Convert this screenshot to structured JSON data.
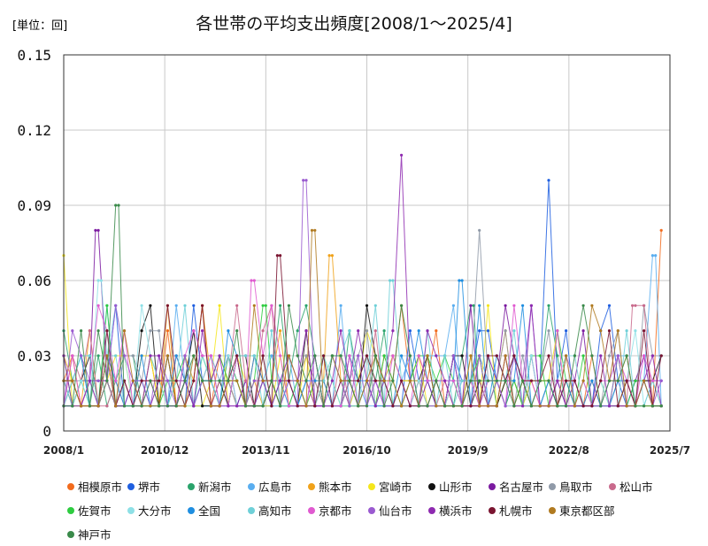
{
  "chart_data": {
    "type": "line",
    "title": "各世帯の平均支出頻度[2008/1～2025/4]",
    "unit_label": "[単位：回]",
    "xlabel": "",
    "ylabel": "",
    "ylim": [
      0,
      0.15
    ],
    "y_ticks": [
      "0",
      "0.03",
      "0.06",
      "0.09",
      "0.12",
      "0.15"
    ],
    "x_tick_labels": [
      "2008/1",
      "2010/12",
      "2013/11",
      "2016/10",
      "2019/9",
      "2022/8",
      "2025/7"
    ],
    "x_range": [
      "2008/1",
      "2025/7"
    ],
    "grid": true,
    "legend_position": "bottom",
    "series": [
      {
        "name": "相模原市",
        "color": "#f26b1d",
        "peak": {
          "x": "2025/4",
          "y": 0.08
        }
      },
      {
        "name": "堺市",
        "color": "#1f5fe0",
        "peak": {
          "x": "2022/1",
          "y": 0.1
        }
      },
      {
        "name": "新潟市",
        "color": "#2aa36b",
        "peak": {
          "x": "2019/11",
          "y": 0.05
        }
      },
      {
        "name": "広島市",
        "color": "#5aaef0",
        "peak": {
          "x": "2025/2",
          "y": 0.07
        }
      },
      {
        "name": "熊本市",
        "color": "#f0a21a",
        "peak": {
          "x": "2015/9",
          "y": 0.07
        }
      },
      {
        "name": "宮崎市",
        "color": "#f5e61c",
        "peak": {
          "x": "2008/1",
          "y": 0.07
        }
      },
      {
        "name": "山形市",
        "color": "#111111",
        "peak": {
          "x": "2010/4",
          "y": 0.04
        }
      },
      {
        "name": "名古屋市",
        "color": "#7b1aa0",
        "peak": {
          "x": "2008/12",
          "y": 0.08
        }
      },
      {
        "name": "鳥取市",
        "color": "#909aa8",
        "peak": {
          "x": "2020/1",
          "y": 0.08
        }
      },
      {
        "name": "松山市",
        "color": "#c96a8c",
        "peak": {
          "x": "2024/6",
          "y": 0.05
        }
      },
      {
        "name": "佐賀市",
        "color": "#2ecc40",
        "peak": {
          "x": "2013/11",
          "y": 0.05
        }
      },
      {
        "name": "大分市",
        "color": "#8ee0e6",
        "peak": {
          "x": "2009/2",
          "y": 0.06
        }
      },
      {
        "name": "全国",
        "color": "#1f8ee0",
        "peak": {
          "x": "2019/6",
          "y": 0.06
        }
      },
      {
        "name": "高知市",
        "color": "#6fd0d8",
        "peak": {
          "x": "2017/6",
          "y": 0.06
        }
      },
      {
        "name": "京都市",
        "color": "#e05ad0",
        "peak": {
          "x": "2013/6",
          "y": 0.06
        }
      },
      {
        "name": "仙台市",
        "color": "#9a5ad0",
        "peak": {
          "x": "2014/12",
          "y": 0.1
        }
      },
      {
        "name": "横浜市",
        "color": "#8e2ab0",
        "peak": {
          "x": "2017/10",
          "y": 0.11
        }
      },
      {
        "name": "札幌市",
        "color": "#7a1430",
        "peak": {
          "x": "2014/3",
          "y": 0.07
        }
      },
      {
        "name": "東京都区部",
        "color": "#b07a20",
        "peak": {
          "x": "2015/3",
          "y": 0.08
        }
      },
      {
        "name": "神戸市",
        "color": "#3a8a4a",
        "peak": {
          "x": "2009/8",
          "y": 0.09
        }
      }
    ]
  }
}
